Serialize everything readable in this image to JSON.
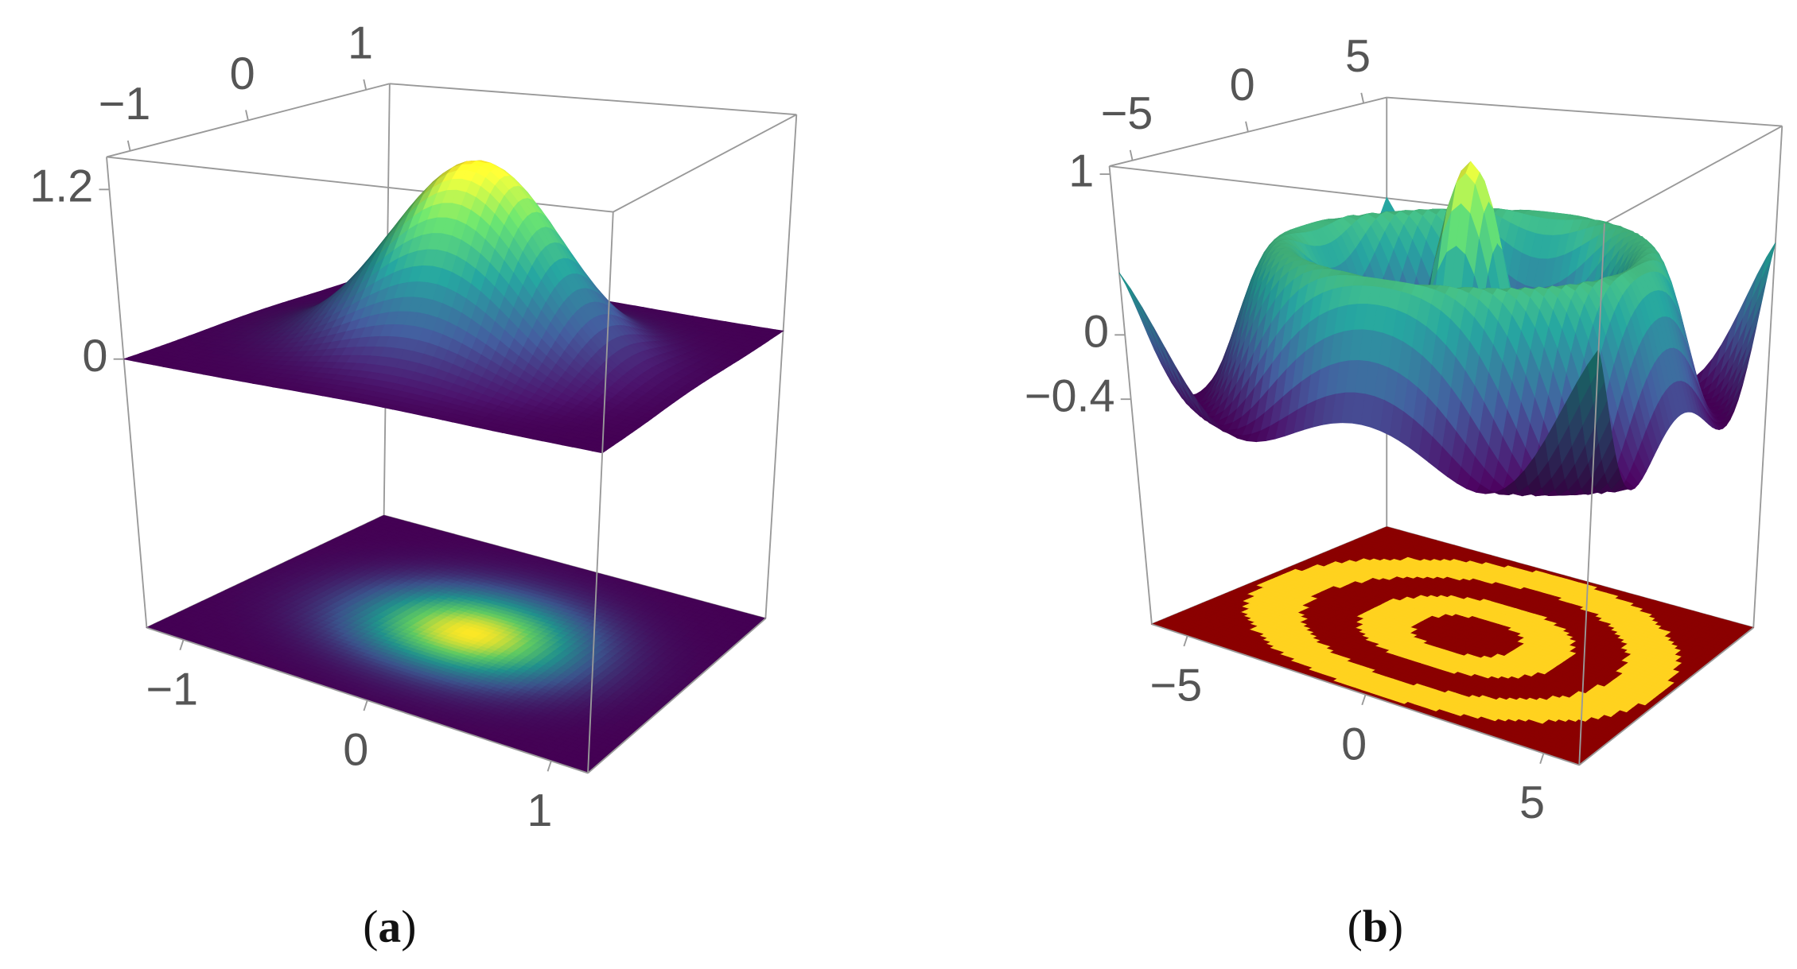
{
  "chart_data": [
    {
      "type": "surface3d",
      "caption": "(a)",
      "xlim": [
        -1.2,
        1.2
      ],
      "ylim": [
        -1.2,
        1.2
      ],
      "zlim": [
        -1.9,
        1.43
      ],
      "xticks": [
        {
          "value": -1,
          "label": "−1"
        },
        0,
        1
      ],
      "yticks": [
        {
          "value": -1,
          "label": "−1"
        },
        0,
        1
      ],
      "zticks": [
        1.2,
        0
      ]
    },
    {
      "type": "surface3d",
      "caption": "(b)",
      "xlim": [
        -6,
        6
      ],
      "ylim": [
        -6,
        6
      ],
      "zlim": [
        -1.8,
        1.05
      ],
      "xticks": [
        {
          "value": -5,
          "label": "−5"
        },
        0,
        5
      ],
      "yticks": [
        {
          "value": -5,
          "label": "−5"
        },
        0,
        5
      ],
      "zticks": [
        1,
        0,
        {
          "value": -0.4,
          "label": "−0.4"
        }
      ]
    }
  ]
}
